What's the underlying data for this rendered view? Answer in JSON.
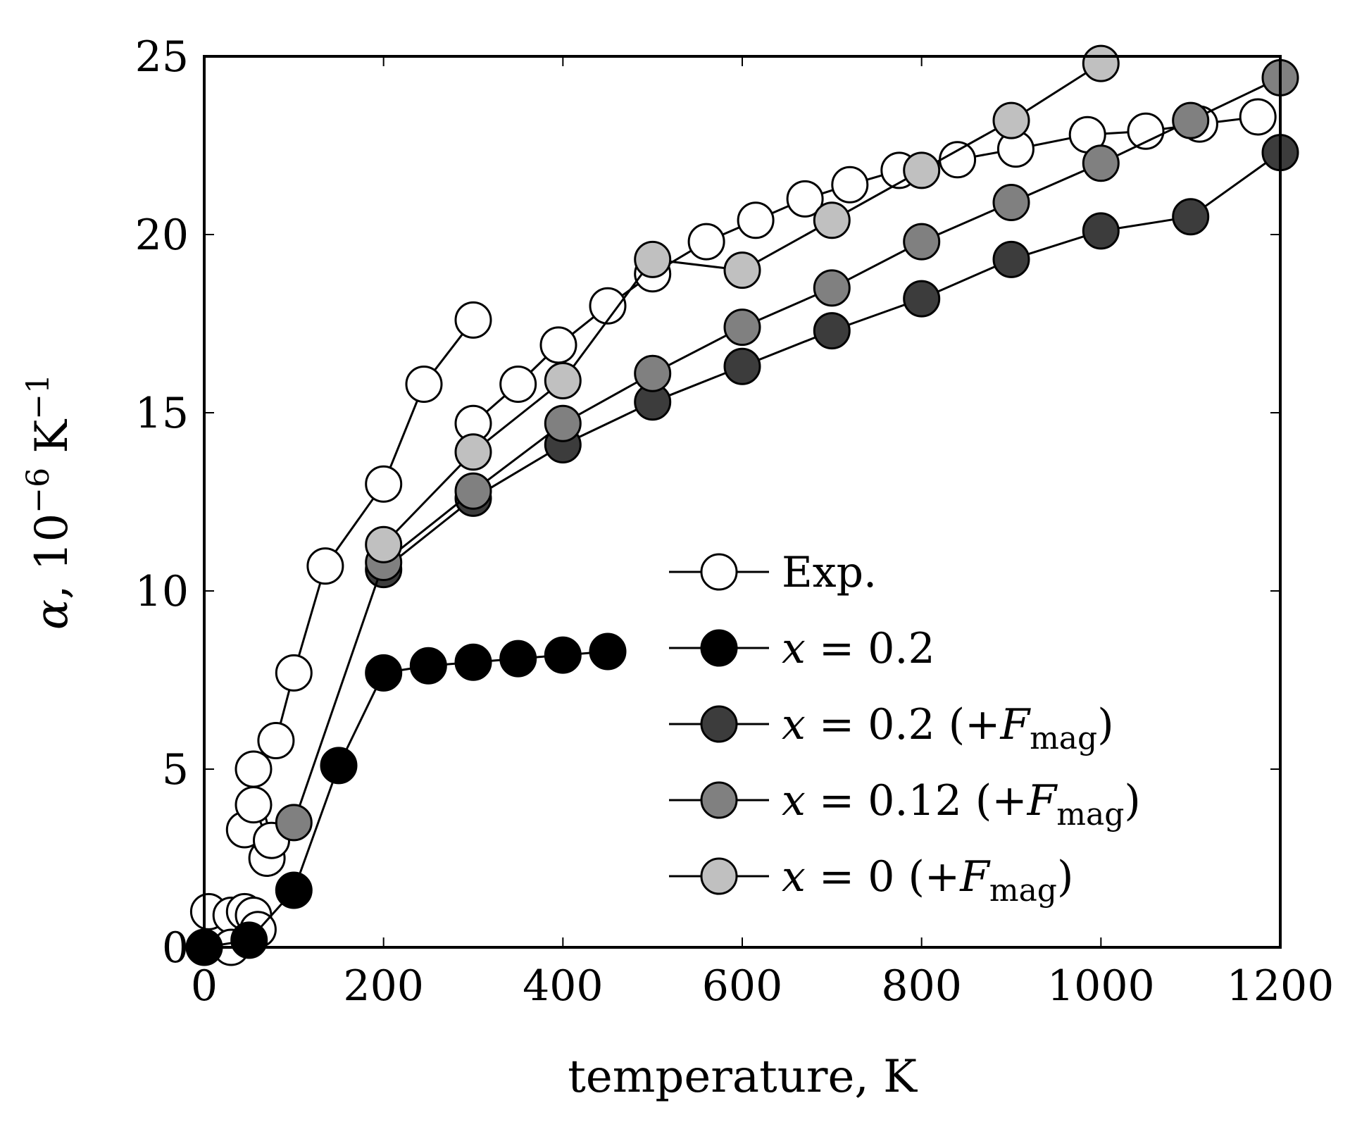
{
  "chart_data": {
    "type": "line",
    "title": "",
    "xlabel": "temperature, K",
    "ylabel": "α, 10−6 K−1",
    "ylabel_parts": {
      "symbol": "α",
      "sep": ", 10",
      "exp1": "−6",
      "unit": " K",
      "exp2": "−1"
    },
    "xlim": [
      0,
      1200
    ],
    "ylim": [
      0,
      25
    ],
    "xticks": [
      0,
      200,
      400,
      600,
      800,
      1000,
      1200
    ],
    "yticks": [
      0,
      5,
      10,
      15,
      20,
      25
    ],
    "grid": false,
    "legend_position": "center-right",
    "series": [
      {
        "name": "Exp.",
        "label_parts": {
          "plain": "Exp."
        },
        "color": "#ffffff",
        "segments": [
          [
            [
              5,
              1.0
            ],
            [
              30,
              0.9
            ],
            [
              45,
              1.0
            ],
            [
              55,
              0.9
            ],
            [
              60,
              0.5
            ],
            [
              30,
              0.0
            ]
          ],
          [
            [
              45,
              3.3
            ],
            [
              55,
              4.0
            ],
            [
              70,
              2.5
            ],
            [
              75,
              3.0
            ],
            [
              55,
              5.0
            ],
            [
              80,
              5.8
            ],
            [
              100,
              7.7
            ],
            [
              135,
              10.7
            ],
            [
              200,
              13.0
            ],
            [
              245,
              15.8
            ],
            [
              300,
              17.6
            ]
          ],
          [
            [
              300,
              14.7
            ],
            [
              350,
              15.8
            ],
            [
              395,
              16.9
            ],
            [
              450,
              18.0
            ],
            [
              500,
              18.9
            ],
            [
              560,
              19.8
            ],
            [
              615,
              20.4
            ],
            [
              670,
              21.0
            ],
            [
              720,
              21.4
            ],
            [
              775,
              21.8
            ],
            [
              840,
              22.1
            ],
            [
              905,
              22.4
            ],
            [
              985,
              22.8
            ],
            [
              1050,
              22.9
            ],
            [
              1110,
              23.1
            ],
            [
              1175,
              23.3
            ]
          ]
        ]
      },
      {
        "name": "x = 0.2",
        "label_parts": {
          "var": "x",
          "eq": " = 0.2"
        },
        "color": "#000000",
        "segments": [
          [
            [
              0,
              0.0
            ],
            [
              50,
              0.2
            ],
            [
              100,
              1.6
            ],
            [
              150,
              5.1
            ],
            [
              200,
              7.7
            ],
            [
              250,
              7.9
            ],
            [
              300,
              8.0
            ],
            [
              350,
              8.1
            ],
            [
              400,
              8.2
            ],
            [
              450,
              8.3
            ]
          ]
        ]
      },
      {
        "name": "x = 0.2 (+Fmag)",
        "label_parts": {
          "var": "x",
          "eq": " = 0.2 (+",
          "F": "F",
          "sub": "mag",
          "close": ")"
        },
        "color": "#3c3c3c",
        "segments": [
          [
            [
              200,
              10.6
            ],
            [
              300,
              12.6
            ],
            [
              400,
              14.1
            ],
            [
              500,
              15.3
            ],
            [
              600,
              16.3
            ],
            [
              700,
              17.3
            ],
            [
              800,
              18.2
            ],
            [
              900,
              19.3
            ],
            [
              1000,
              20.1
            ],
            [
              1100,
              20.5
            ],
            [
              1200,
              22.3
            ]
          ]
        ]
      },
      {
        "name": "x = 0.12 (+Fmag)",
        "label_parts": {
          "var": "x",
          "eq": " = 0.12 (+",
          "F": "F",
          "sub": "mag",
          "close": ")"
        },
        "color": "#808080",
        "segments": [
          [
            [
              100,
              3.5
            ],
            [
              200,
              10.8
            ],
            [
              300,
              12.8
            ],
            [
              400,
              14.7
            ],
            [
              500,
              16.1
            ],
            [
              600,
              17.4
            ],
            [
              700,
              18.5
            ],
            [
              800,
              19.8
            ],
            [
              900,
              20.9
            ],
            [
              1000,
              22.0
            ],
            [
              1100,
              23.2
            ],
            [
              1200,
              24.4
            ]
          ]
        ]
      },
      {
        "name": "x = 0 (+Fmag)",
        "label_parts": {
          "var": "x",
          "eq": " = 0 (+",
          "F": "F",
          "sub": "mag",
          "close": ")"
        },
        "color": "#c0c0c0",
        "segments": [
          [
            [
              200,
              11.3
            ],
            [
              300,
              13.9
            ],
            [
              400,
              15.9
            ],
            [
              500,
              19.3
            ],
            [
              600,
              19.0
            ],
            [
              700,
              20.4
            ],
            [
              800,
              21.8
            ],
            [
              900,
              23.2
            ],
            [
              1000,
              24.8
            ]
          ]
        ]
      }
    ]
  }
}
